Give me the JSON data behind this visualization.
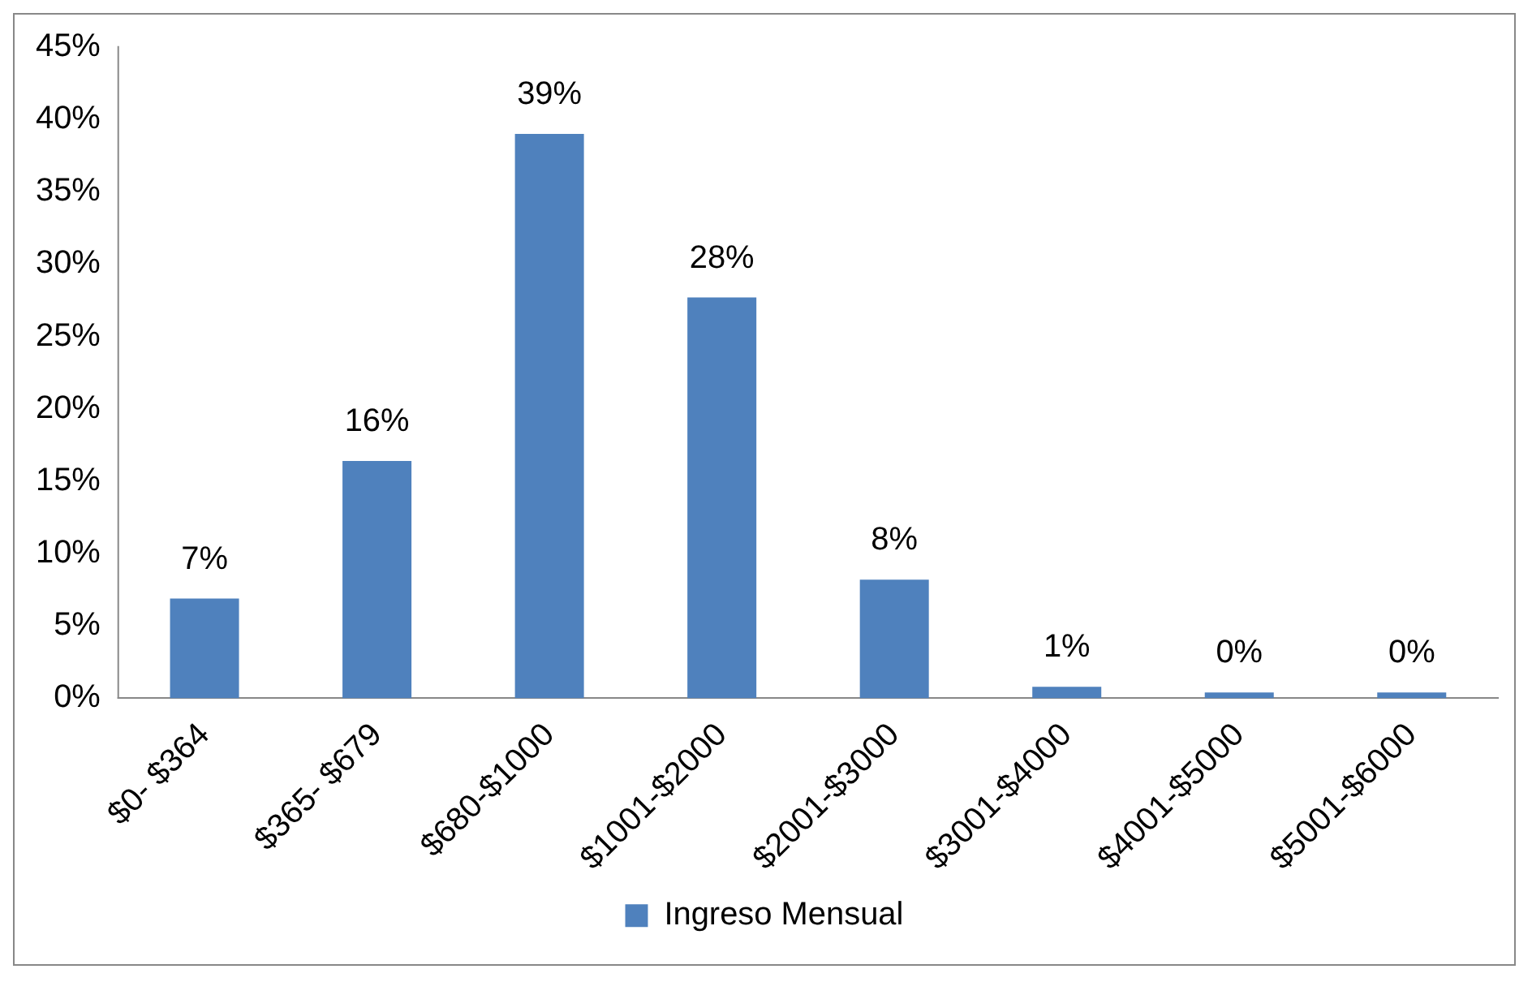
{
  "chart_data": {
    "type": "bar",
    "categories": [
      "$0- $364",
      "$365- $679",
      "$680-$1000",
      "$1001-$2000",
      "$2001-$3000",
      "$3001-$4000",
      "$4001-$5000",
      "$5001-$6000"
    ],
    "series": [
      {
        "name": "Ingreso Mensual",
        "color": "#4f81bd",
        "values": [
          6.9,
          16.4,
          39,
          27.7,
          8.2,
          0.8,
          0.4,
          0.4
        ],
        "value_labels": [
          "7%",
          "16%",
          "39%",
          "28%",
          "8%",
          "1%",
          "0%",
          "0%"
        ]
      }
    ],
    "ylim": [
      0,
      45
    ],
    "yticks": [
      {
        "value": 0,
        "label": "0%"
      },
      {
        "value": 5,
        "label": "5%"
      },
      {
        "value": 10,
        "label": "10%"
      },
      {
        "value": 15,
        "label": "15%"
      },
      {
        "value": 20,
        "label": "20%"
      },
      {
        "value": 25,
        "label": "25%"
      },
      {
        "value": 30,
        "label": "30%"
      },
      {
        "value": 35,
        "label": "35%"
      },
      {
        "value": 40,
        "label": "40%"
      },
      {
        "value": 45,
        "label": "45%"
      }
    ],
    "legend": "bottom"
  }
}
